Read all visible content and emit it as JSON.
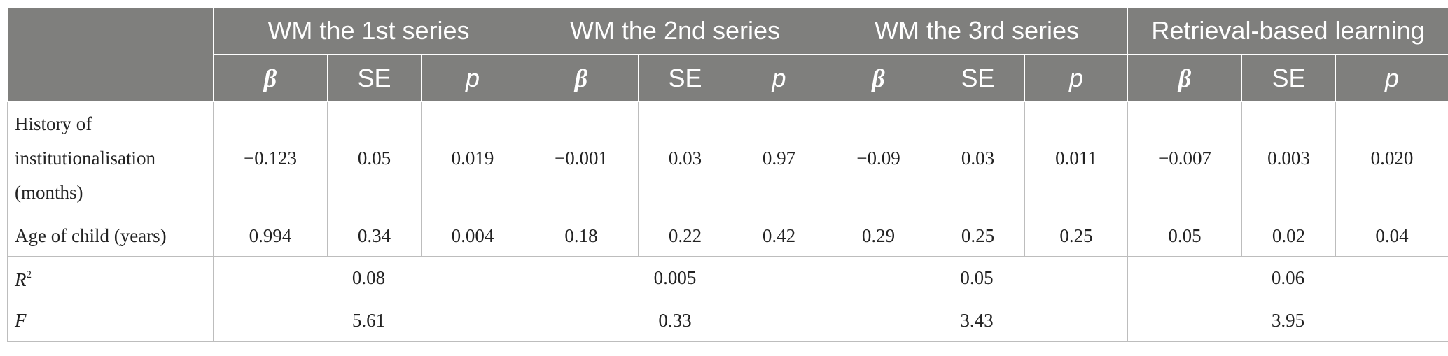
{
  "table": {
    "groups": [
      "WM the 1st series",
      "WM the 2nd series",
      "WM the 3rd series",
      "Retrieval-based learning"
    ],
    "subheaders": [
      "β",
      "SE",
      "p"
    ],
    "rows": [
      {
        "label": "History of institutionalisation (months)",
        "values": [
          "−0.123",
          "0.05",
          "0.019",
          "−0.001",
          "0.03",
          "0.97",
          "−0.09",
          "0.03",
          "0.011",
          "−0.007",
          "0.003",
          "0.020"
        ]
      },
      {
        "label": "Age of child (years)",
        "values": [
          "0.994",
          "0.34",
          "0.004",
          "0.18",
          "0.22",
          "0.42",
          "0.29",
          "0.25",
          "0.25",
          "0.05",
          "0.02",
          "0.04"
        ]
      }
    ],
    "r2": {
      "label": "R",
      "superscript": "2",
      "values": [
        "0.08",
        "0.005",
        "0.05",
        "0.06"
      ]
    },
    "f": {
      "label": "F",
      "values": [
        "5.61",
        "0.33",
        "3.43",
        "3.95"
      ]
    }
  }
}
